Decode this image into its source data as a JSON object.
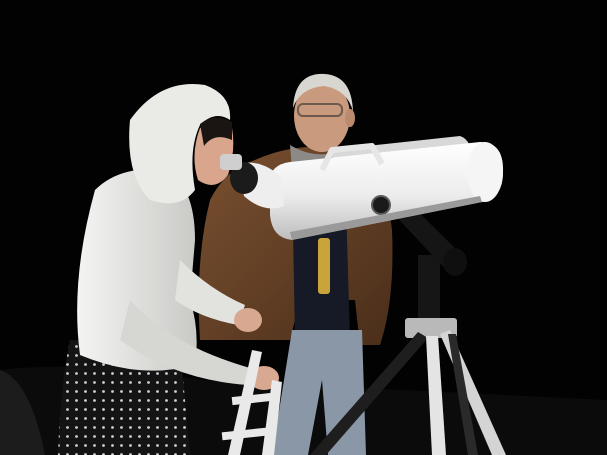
{
  "scene": {
    "kind": "photograph",
    "setting": "night outdoors",
    "subjects": [
      "woman-in-white-hoodie",
      "older-man-in-brown-jacket"
    ],
    "main_object": "large-binocular-telescope-on-tripod",
    "visible_text": []
  },
  "colors": {
    "background": "#020202",
    "hoodie": "#e4e4e2",
    "jacket": "#6b4428",
    "telescope_body": "#f2f2f2",
    "tripod": "#1c1c1c",
    "jeans": "#8a97a6",
    "skirt": "#141414"
  }
}
